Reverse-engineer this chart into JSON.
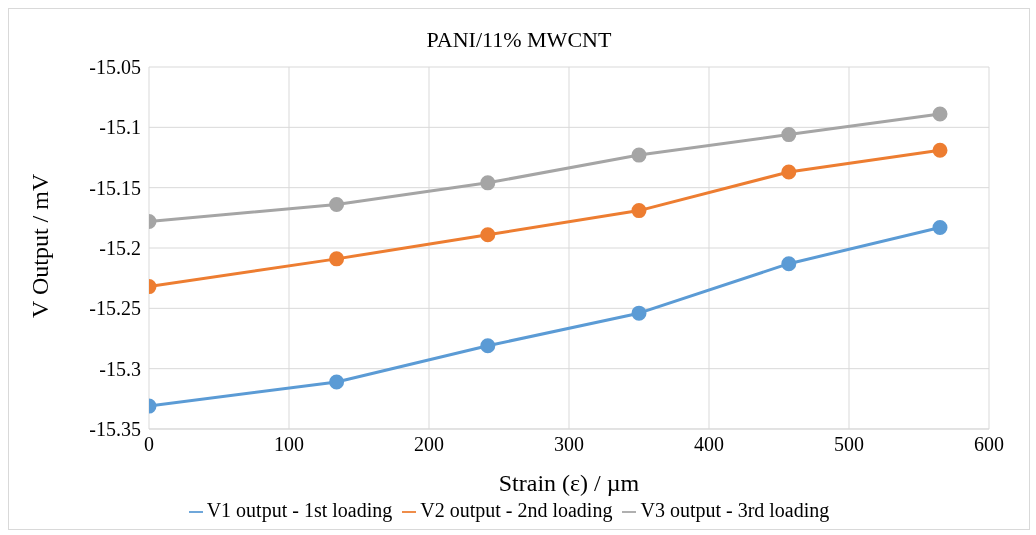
{
  "chart_data": {
    "type": "line",
    "title": "PANI/11% MWCNT",
    "xlabel": "Strain (ε) / µm",
    "ylabel": "V Output / mV",
    "x": [
      0,
      134,
      242,
      350,
      457,
      565
    ],
    "series": [
      {
        "name": "V1 output - 1st loading",
        "color": "#5b9bd5",
        "values": [
          -15.331,
          -15.311,
          -15.281,
          -15.254,
          -15.213,
          -15.183
        ]
      },
      {
        "name": "V2 output - 2nd loading",
        "color": "#ed7d31",
        "values": [
          -15.232,
          -15.209,
          -15.189,
          -15.169,
          -15.137,
          -15.119
        ]
      },
      {
        "name": "V3 output - 3rd loading",
        "color": "#a5a5a5",
        "values": [
          -15.178,
          -15.164,
          -15.146,
          -15.123,
          -15.106,
          -15.089
        ]
      }
    ],
    "xlim": [
      0,
      600
    ],
    "xticks": [
      0,
      100,
      200,
      300,
      400,
      500,
      600
    ],
    "ylim": [
      -15.35,
      -15.05
    ],
    "yticks": [
      -15.35,
      -15.3,
      -15.25,
      -15.2,
      -15.15,
      -15.1,
      -15.05
    ],
    "grid": true,
    "legend": "bottom",
    "marker": "circle",
    "line_style": "solid"
  }
}
